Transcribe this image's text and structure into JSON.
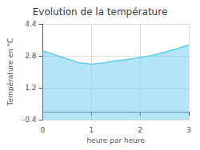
{
  "chart_data": {
    "type": "area",
    "title": "Evolution de la température",
    "xlabel": "heure par heure",
    "ylabel": "Température en °C",
    "x": [
      0,
      0.25,
      0.5,
      0.75,
      1.0,
      1.25,
      1.5,
      1.75,
      2.0,
      2.25,
      2.5,
      2.75,
      3.0
    ],
    "values": [
      3.05,
      2.85,
      2.65,
      2.45,
      2.38,
      2.45,
      2.55,
      2.62,
      2.72,
      2.82,
      2.98,
      3.15,
      3.35
    ],
    "color": "#66ccee",
    "xlim": [
      0,
      3
    ],
    "xticks": [
      0,
      1,
      2,
      3
    ],
    "ylim": [
      -0.4,
      4.4
    ],
    "yticks": [
      -0.4,
      1.2,
      2.8,
      4.4
    ],
    "grid": true
  }
}
